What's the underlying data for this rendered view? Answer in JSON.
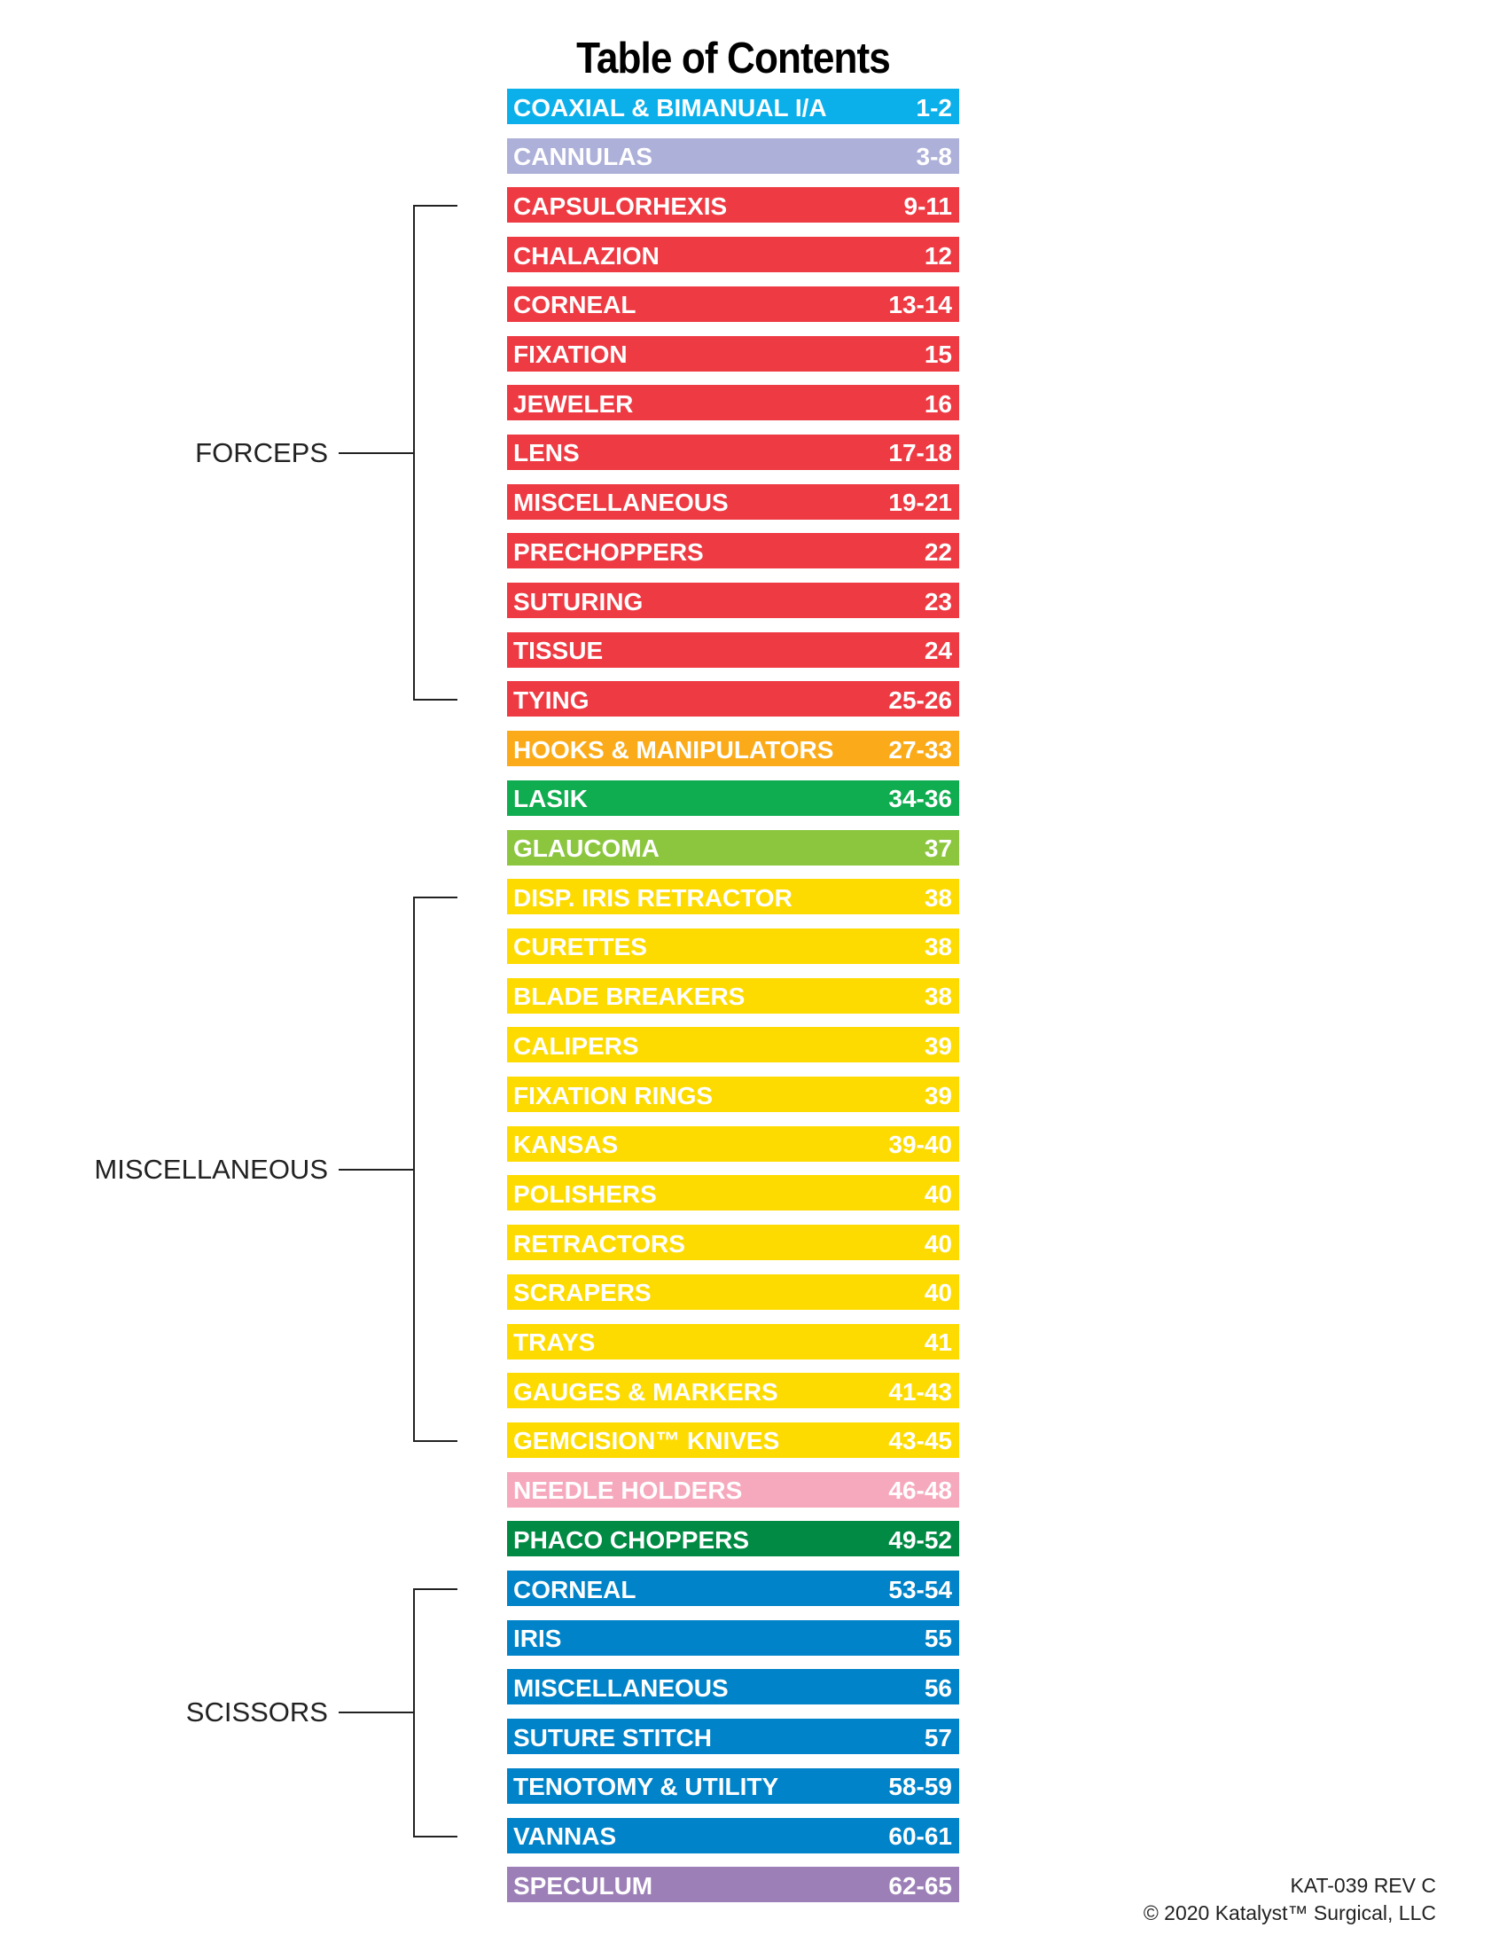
{
  "title": "Table of Contents",
  "entries": [
    {
      "label": "COAXIAL & BIMANUAL I/A",
      "pages": "1-2",
      "color": "#0bb0ea"
    },
    {
      "label": "CANNULAS",
      "pages": "3-8",
      "color": "#adb0d8"
    },
    {
      "label": "CAPSULORHEXIS",
      "pages": "9-11",
      "color": "#ee3a43"
    },
    {
      "label": "CHALAZION",
      "pages": "12",
      "color": "#ee3a43"
    },
    {
      "label": "CORNEAL",
      "pages": "13-14",
      "color": "#ee3a43"
    },
    {
      "label": "FIXATION",
      "pages": "15",
      "color": "#ee3a43"
    },
    {
      "label": "JEWELER",
      "pages": "16",
      "color": "#ee3a43"
    },
    {
      "label": "LENS",
      "pages": "17-18",
      "color": "#ee3a43"
    },
    {
      "label": "MISCELLANEOUS",
      "pages": "19-21",
      "color": "#ee3a43"
    },
    {
      "label": "PRECHOPPERS",
      "pages": "22",
      "color": "#ee3a43"
    },
    {
      "label": "SUTURING",
      "pages": "23",
      "color": "#ee3a43"
    },
    {
      "label": "TISSUE",
      "pages": "24",
      "color": "#ee3a43"
    },
    {
      "label": "TYING",
      "pages": "25-26",
      "color": "#ee3a43"
    },
    {
      "label": "HOOKS & MANIPULATORS",
      "pages": "27-33",
      "color": "#fbab19"
    },
    {
      "label": "LASIK",
      "pages": "34-36",
      "color": "#10ac50"
    },
    {
      "label": "GLAUCOMA",
      "pages": "37",
      "color": "#8cc63f"
    },
    {
      "label": "DISP. IRIS RETRACTOR",
      "pages": "38",
      "color": "#fedb00"
    },
    {
      "label": "CURETTES",
      "pages": "38",
      "color": "#fedb00"
    },
    {
      "label": "BLADE BREAKERS",
      "pages": "38",
      "color": "#fedb00"
    },
    {
      "label": "CALIPERS",
      "pages": "39",
      "color": "#fedb00"
    },
    {
      "label": "FIXATION RINGS",
      "pages": "39",
      "color": "#fedb00"
    },
    {
      "label": "KANSAS",
      "pages": "39-40",
      "color": "#fedb00"
    },
    {
      "label": "POLISHERS",
      "pages": "40",
      "color": "#fedb00"
    },
    {
      "label": "RETRACTORS",
      "pages": "40",
      "color": "#fedb00"
    },
    {
      "label": "SCRAPERS",
      "pages": "40",
      "color": "#fedb00"
    },
    {
      "label": "TRAYS",
      "pages": "41",
      "color": "#fedb00"
    },
    {
      "label": "GAUGES & MARKERS",
      "pages": "41-43",
      "color": "#fedb00"
    },
    {
      "label": "GEMCISION™ KNIVES",
      "pages": "43-45",
      "color": "#fedb00"
    },
    {
      "label": "NEEDLE HOLDERS",
      "pages": "46-48",
      "color": "#f6a9bd"
    },
    {
      "label": "PHACO CHOPPERS",
      "pages": "49-52",
      "color": "#008a43"
    },
    {
      "label": "CORNEAL",
      "pages": "53-54",
      "color": "#0083c8"
    },
    {
      "label": "IRIS",
      "pages": "55",
      "color": "#0083c8"
    },
    {
      "label": "MISCELLANEOUS",
      "pages": "56",
      "color": "#0083c8"
    },
    {
      "label": "SUTURE STITCH",
      "pages": "57",
      "color": "#0083c8"
    },
    {
      "label": "TENOTOMY & UTILITY",
      "pages": "58-59",
      "color": "#0083c8"
    },
    {
      "label": "VANNAS",
      "pages": "60-61",
      "color": "#0083c8"
    },
    {
      "label": "SPECULUM",
      "pages": "62-65",
      "color": "#9c7fb7"
    }
  ],
  "groups": [
    {
      "label": "FORCEPS",
      "first": 2,
      "last": 12
    },
    {
      "label": "MISCELLANEOUS",
      "first": 16,
      "last": 27
    },
    {
      "label": "SCISSORS",
      "first": 30,
      "last": 35
    }
  ],
  "footer": {
    "code": "KAT-039 REV C",
    "copyright": "© 2020 Katalyst™ Surgical, LLC"
  }
}
